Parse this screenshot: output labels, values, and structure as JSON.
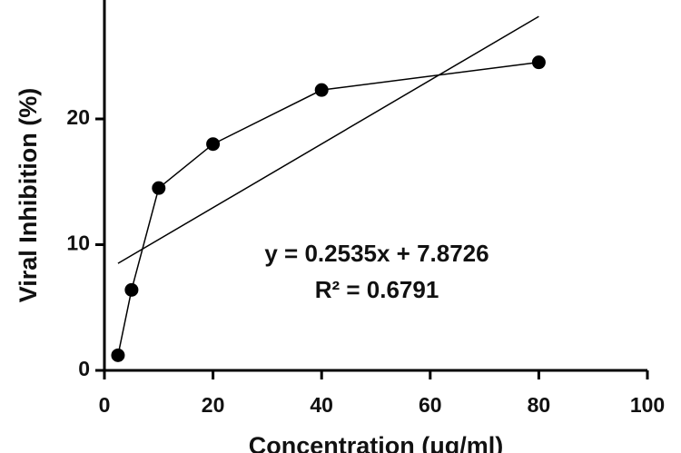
{
  "chart_data": {
    "type": "line",
    "x_label": "Concentration (μg/ml)",
    "y_label": "Viral Inhibition (%)",
    "x": [
      2.5,
      5,
      10,
      20,
      40,
      80
    ],
    "series": [
      {
        "color": "#000000",
        "values": [
          1.2,
          6.4,
          14.5,
          18,
          22.3,
          24.5
        ]
      }
    ],
    "trendline": {
      "x": [
        2.5,
        80
      ],
      "values": [
        8.51,
        28.15
      ],
      "color": "#000000"
    },
    "annotations": [
      "y = 0.2535x + 7.8726",
      "R² = 0.6791"
    ],
    "xlim": [
      0,
      100
    ],
    "xticks": [
      0,
      20,
      40,
      60,
      80,
      100
    ],
    "ylim": [
      0,
      30
    ],
    "yticks": [
      0,
      10,
      20,
      30
    ]
  }
}
